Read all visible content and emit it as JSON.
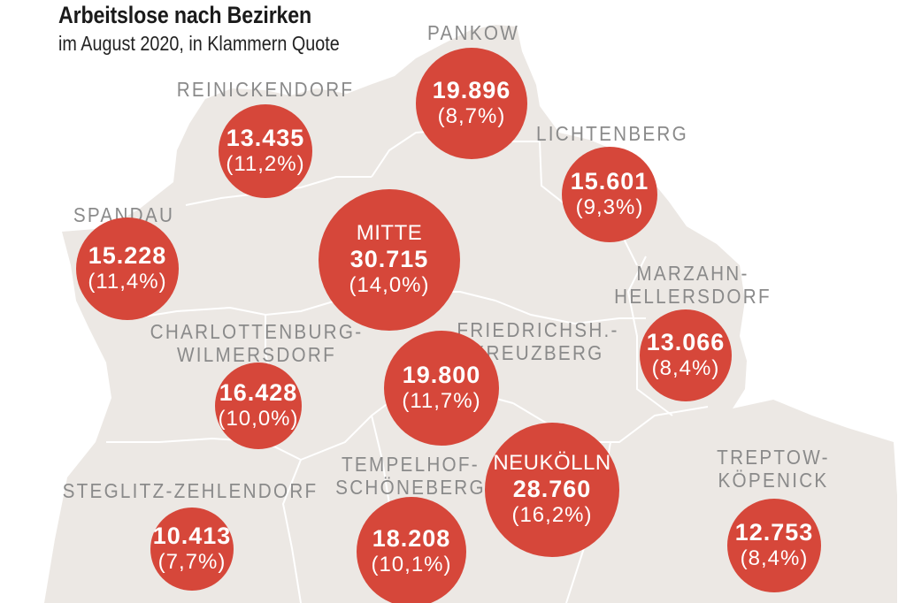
{
  "title": "Arbeitslose nach Bezirken",
  "subtitle": "im August 2020, in Klammern Quote",
  "colors": {
    "bubble": "#d6473a",
    "map": "#ece8e4",
    "district_border": "#ffffff",
    "label": "#8a8a8a"
  },
  "districts": [
    {
      "id": "pankow",
      "label_lines": [
        "PANKOW"
      ],
      "bubble_name": "",
      "value": "19.896",
      "quote": "(8,7%)"
    },
    {
      "id": "reinickendorf",
      "label_lines": [
        "REINICKENDORF"
      ],
      "bubble_name": "",
      "value": "13.435",
      "quote": "(11,2%)"
    },
    {
      "id": "lichtenberg",
      "label_lines": [
        "LICHTENBERG"
      ],
      "bubble_name": "",
      "value": "15.601",
      "quote": "(9,3%)"
    },
    {
      "id": "spandau",
      "label_lines": [
        "SPANDAU"
      ],
      "bubble_name": "",
      "value": "15.228",
      "quote": "(11,4%)"
    },
    {
      "id": "mitte",
      "label_lines": [],
      "bubble_name": "MITTE",
      "value": "30.715",
      "quote": "(14,0%)"
    },
    {
      "id": "marzahn-hellersdorf",
      "label_lines": [
        "MARZAHN-",
        "HELLERSDORF"
      ],
      "bubble_name": "",
      "value": "13.066",
      "quote": "(8,4%)"
    },
    {
      "id": "charlottenburg-wilmersdorf",
      "label_lines": [
        "CHARLOTTENBURG-",
        "WILMERSDORF"
      ],
      "bubble_name": "",
      "value": "16.428",
      "quote": "(10,0%)"
    },
    {
      "id": "friedrichshain-kreuzberg",
      "label_lines": [
        "FRIEDRICHSH.-",
        "KREUZBERG"
      ],
      "bubble_name": "",
      "value": "19.800",
      "quote": "(11,7%)"
    },
    {
      "id": "neukoelln",
      "label_lines": [],
      "bubble_name": "NEUKÖLLN",
      "value": "28.760",
      "quote": "(16,2%)"
    },
    {
      "id": "tempelhof-schoeneberg",
      "label_lines": [
        "TEMPELHOF-",
        "SCHÖNEBERG"
      ],
      "bubble_name": "",
      "value": "18.208",
      "quote": "(10,1%)"
    },
    {
      "id": "treptow-koepenick",
      "label_lines": [
        "TREPTOW-",
        "KÖPENICK"
      ],
      "bubble_name": "",
      "value": "12.753",
      "quote": "(8,4%)"
    },
    {
      "id": "steglitz-zehlendorf",
      "label_lines": [
        "STEGLITZ-ZEHLENDORF"
      ],
      "bubble_name": "",
      "value": "10.413",
      "quote": "(7,7%)"
    }
  ]
}
